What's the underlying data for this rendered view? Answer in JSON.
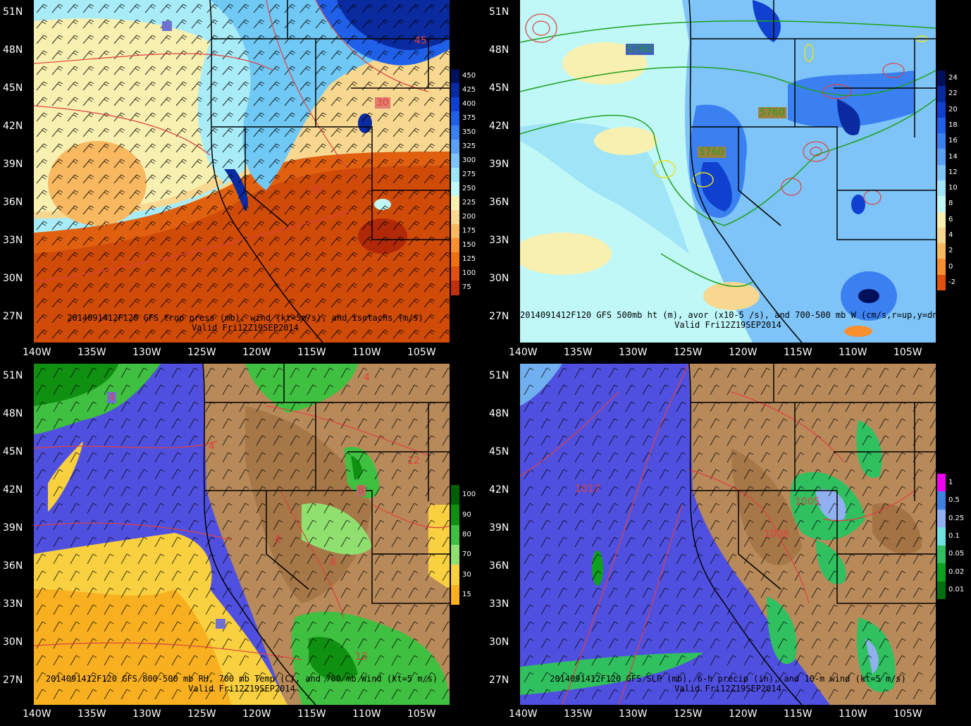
{
  "lat_labels": [
    "51N",
    "48N",
    "45N",
    "42N",
    "39N",
    "36N",
    "33N",
    "30N",
    "27N"
  ],
  "lon_labels": [
    "140W",
    "135W",
    "130W",
    "125W",
    "120W",
    "115W",
    "110W",
    "105W"
  ],
  "panels": [
    {
      "id": "tl",
      "caption1": "2014091412F120 GFS trop press (mb), wind (kt=5m/s), and isotachs (m/s)",
      "caption2": "Valid Fri12Z19SEP2014",
      "colorbar": [
        "450",
        "425",
        "400",
        "375",
        "350",
        "325",
        "300",
        "275",
        "250",
        "225",
        "200",
        "175",
        "150",
        "125",
        "100",
        "75"
      ],
      "colors": [
        "#00105a",
        "#0a2aa0",
        "#1040d0",
        "#2060e8",
        "#3a80f0",
        "#5aa0f4",
        "#7ec4f8",
        "#a0e4f8",
        "#c0f8f8",
        "#f8f0b0",
        "#f8d890",
        "#f8b860",
        "#f89030",
        "#f07010",
        "#e05010",
        "#c03010"
      ],
      "labels": [
        {
          "t": "45"
        },
        {
          "t": "30"
        },
        {
          "t": "30"
        }
      ]
    },
    {
      "id": "tr",
      "caption1": "2014091412F120 GFS 500mb ht (m), avor (x10-5 /s), and 700-500 mb W (cm/s,r=up,y=dn)",
      "caption2": "Valid Fri12Z19SEP2014",
      "colorbar": [
        "24",
        "22",
        "20",
        "18",
        "16",
        "14",
        "12",
        "10",
        "8",
        "6",
        "4",
        "2",
        "0",
        "-2"
      ],
      "colors": [
        "#00105a",
        "#0a2aa0",
        "#1040d0",
        "#2060e8",
        "#3a80f0",
        "#5aa0f4",
        "#7ec4f8",
        "#a0e4f8",
        "#c0f8f8",
        "#f8f0b0",
        "#f8d890",
        "#f8b860",
        "#f89030",
        "#e05010"
      ],
      "labels": [
        {
          "t": "5760"
        },
        {
          "t": "5760"
        },
        {
          "t": "5760"
        }
      ]
    },
    {
      "id": "bl",
      "caption1": "2014091412F120 GFS 800-500 mb RH, 700 mb Temp (C), and 700 mb Wind (kt=5 m/s)",
      "caption2": "Valid Fri12Z19SEP2014",
      "colorbar": [
        "100",
        "90",
        "80",
        "70",
        "30",
        "15"
      ],
      "colors": [
        "#006000",
        "#109010",
        "#40c040",
        "#90e070",
        "#f8d040",
        "#f8b020"
      ],
      "labels": [
        {
          "t": "4"
        },
        {
          "t": "4"
        },
        {
          "t": "4"
        },
        {
          "t": "8"
        },
        {
          "t": "12"
        },
        {
          "t": "8"
        },
        {
          "t": "8"
        },
        {
          "t": "12"
        }
      ]
    },
    {
      "id": "br",
      "caption1": "2014091412F120 GFS SLP (mb), 6-h precip (in), and 10-m wind (kt=5 m/s)",
      "caption2": "Valid Fri12Z19SEP2014",
      "colorbar": [
        "1",
        "0.5",
        "0.25",
        "0.1",
        "0.05",
        "0.02",
        "0.01"
      ],
      "colors": [
        "#f000f0",
        "#4080e0",
        "#90b0f0",
        "#70e0e0",
        "#30c060",
        "#10a020",
        "#007010"
      ],
      "labels": [
        {
          "t": "1017"
        },
        {
          "t": "1005"
        },
        {
          "t": "1008"
        }
      ]
    }
  ]
}
